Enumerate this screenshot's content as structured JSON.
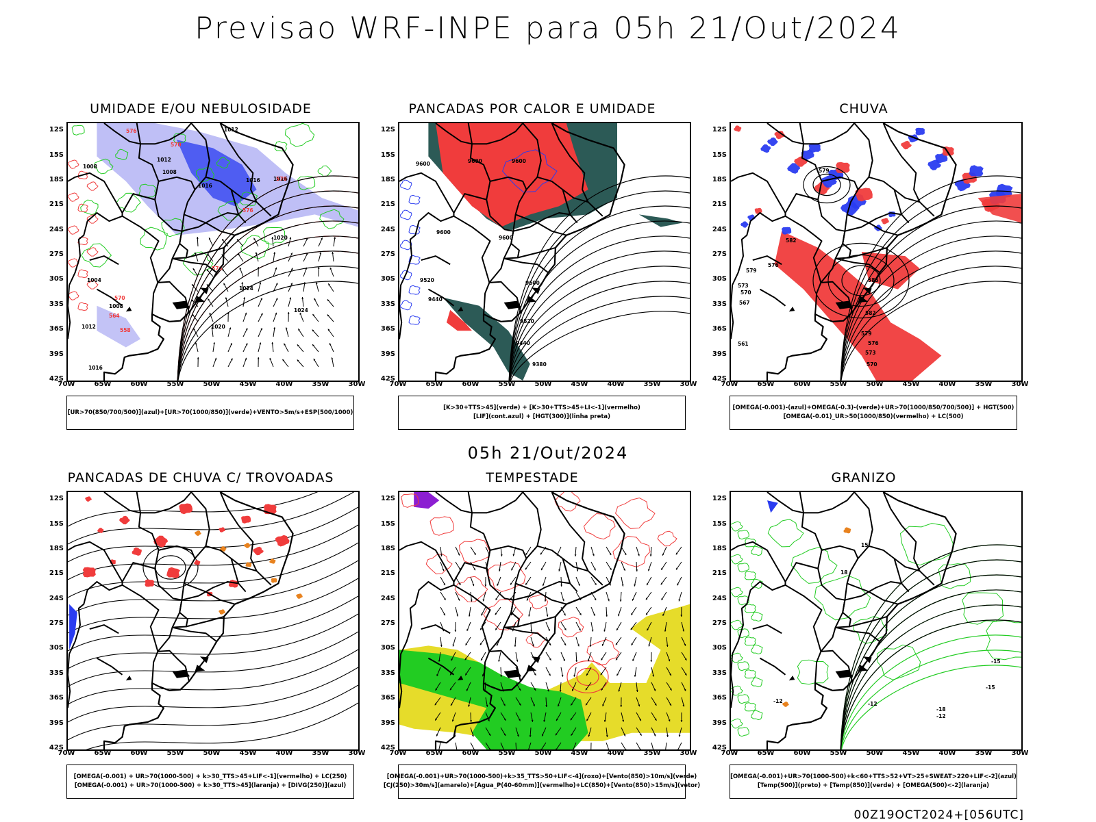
{
  "title": "Previsao WRF-INPE  para 05h 21/Out/2024",
  "mid_date": "05h 21/Out/2024",
  "run_info": "00Z19OCT2024+[056UTC]",
  "axes": {
    "lat_labels": [
      "12S",
      "15S",
      "18S",
      "21S",
      "24S",
      "27S",
      "30S",
      "33S",
      "36S",
      "39S",
      "42S"
    ],
    "lon_labels": [
      "70W",
      "65W",
      "60W",
      "55W",
      "50W",
      "45W",
      "40W",
      "35W",
      "30W"
    ]
  },
  "colors": {
    "red": "#f03c3c",
    "blue": "#2a3cf0",
    "green": "#22cc22",
    "lightblue": "#b4b4f4",
    "darkteal": "#2c5a56",
    "yellow": "#e6dc2a",
    "orange": "#e8821e",
    "purple": "#8c1ed2"
  },
  "panels": [
    {
      "title": "UMIDADE E/OU NEBULOSIDADE",
      "legend": [
        "[UR>70(850/700/500)](azul)+[UR>70(1000/850)](verde)+VENTO>5m/s+ESP(500/1000)"
      ],
      "contour_labels": [
        "1012",
        "1008",
        "1008",
        "1012",
        "1016",
        "1016",
        "1016",
        "1020",
        "1024",
        "1024",
        "1020",
        "1004",
        "1008",
        "1012",
        "1016",
        "576",
        "570",
        "576",
        "570",
        "576",
        "570",
        "564",
        "558"
      ]
    },
    {
      "title": "PANCADAS POR CALOR E UMIDADE",
      "legend": [
        "[K>30+TTS>45](verde) + [K>30+TTS>45+LI<-1](vermelho)",
        "[LIF](cont.azul) + [HGT(300)](linha preta)"
      ],
      "contour_labels": [
        "9600",
        "9600",
        "9600",
        "9600",
        "9600",
        "9520",
        "9440",
        "9520",
        "9440",
        "9380",
        "9600"
      ]
    },
    {
      "title": "CHUVA",
      "legend": [
        "[OMEGA(-0.001)-(azul)+OMEGA(-0.3)-(verde)+UR>70(1000/850/700/500)] + HGT(500)",
        "[OMEGA(-0.01)_UR>50(1000/850)(vermelho) + LC(500)"
      ],
      "contour_labels": [
        "579",
        "582",
        "585",
        "582",
        "579",
        "576",
        "573",
        "570",
        "576",
        "579",
        "573",
        "570",
        "567",
        "561"
      ]
    },
    {
      "title": "PANCADAS DE CHUVA C/ TROVOADAS",
      "legend": [
        "[OMEGA(-0.001) + UR>70(1000-500) + k>30_TTS>45+LIF<-1](vermelho) + LC(250)",
        "[OMEGA(-0.001) + UR>70(1000-500) + k>30_TTS>45](laranja) + [DIVG(250)](azul)"
      ],
      "contour_labels": []
    },
    {
      "title": "TEMPESTADE",
      "legend": [
        "[OMEGA(-0.001)+UR>70(1000-500)+k>35_TTS>50+LIF<-4](roxo)+[Vento(850)>10m/s](verde)",
        "[CJ(250)>30m/s](amarelo)+[Agua_P(40-60mm)](vermelho)+LC(850)+[Vento(850)>15m/s](vetor)"
      ],
      "contour_labels": []
    },
    {
      "title": "GRANIZO",
      "legend": [
        "[OMEGA(-0.001)+UR>70(1000-500)+k<60+TTS>52+VT>25+SWEAT>220+LIF<-2](azul)",
        "[Temp(500)](preto) + [Temp(850)](verde) + [OMEGA(500)<-2](laranja)"
      ],
      "contour_labels": [
        "-15",
        "-12",
        "-18",
        "-15",
        "-12",
        "-12",
        "18",
        "15"
      ]
    }
  ]
}
